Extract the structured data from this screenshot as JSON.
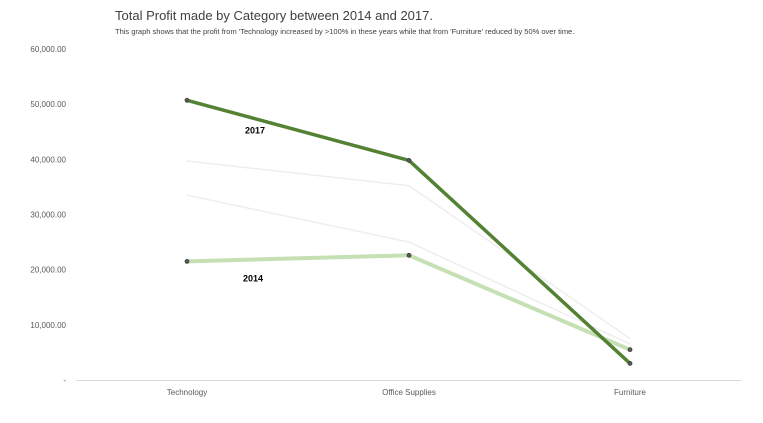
{
  "title": "Total Profit made by Category between 2014 and 2017.",
  "subtitle": "This graph shows that the profit from 'Technology increased by >100% in these years while that from 'Furniture' reduced by 50% over time.",
  "chart_data": {
    "type": "line",
    "categories": [
      "Technology",
      "Office Supplies",
      "Furniture"
    ],
    "ylim": [
      0,
      60000
    ],
    "yticks": [
      0,
      10000,
      20000,
      30000,
      40000,
      50000,
      60000
    ],
    "ytick_labels": [
      "-",
      "10,000.00",
      "20,000.00",
      "30,000.00",
      "40,000.00",
      "50,000.00",
      "60,000.00"
    ],
    "grid": false,
    "legend": "none",
    "series": [
      {
        "values": [
          33500,
          25000,
          6500
        ],
        "color": "#eeeeee",
        "width": 1.5,
        "markers": false
      },
      {
        "values": [
          39700,
          35200,
          7500
        ],
        "color": "#eeeeee",
        "width": 1.5,
        "markers": false
      },
      {
        "name": "2014",
        "values": [
          21500,
          22600,
          5500
        ],
        "color": "#c5e0b4",
        "width": 4,
        "markers": true
      },
      {
        "name": "2017",
        "values": [
          50700,
          39800,
          3000
        ],
        "color": "#548235",
        "width": 3.5,
        "markers": true
      }
    ],
    "annotations": [
      {
        "text": "2017",
        "series": 3
      },
      {
        "text": "2014",
        "series": 2
      }
    ]
  }
}
